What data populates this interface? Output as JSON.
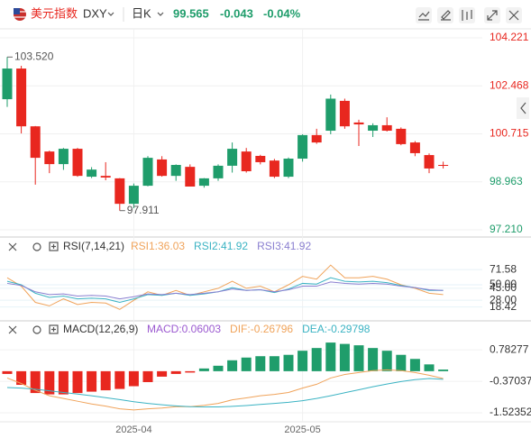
{
  "header": {
    "name": "美元指数",
    "symbol": "DXY",
    "period": "日K",
    "price": "99.565",
    "change": "-0.043",
    "change_pct": "-0.04%",
    "price_color": "#1f9d6b"
  },
  "chart_data": [
    {
      "type": "candlestick",
      "categories": [
        null,
        null,
        null,
        null,
        null,
        null,
        null,
        null,
        null,
        "2025-04",
        null,
        null,
        null,
        null,
        null,
        null,
        null,
        null,
        null,
        null,
        null,
        "2025-05",
        null,
        null,
        null,
        null,
        null,
        null,
        null,
        null,
        null,
        null
      ],
      "open": [
        101.98,
        103.1,
        100.99,
        100.07,
        99.61,
        100.17,
        99.15,
        99.18,
        99.09,
        98.16,
        98.82,
        99.78,
        99.18,
        99.51,
        98.82,
        99.09,
        99.55,
        100.07,
        99.91,
        99.74,
        99.15,
        99.81,
        100.67,
        100.83,
        101.92,
        101.13,
        100.83,
        101.03,
        100.9,
        100.4,
        99.94,
        99.58
      ],
      "high": [
        103.52,
        103.2,
        101.0,
        100.1,
        100.2,
        100.2,
        99.5,
        99.68,
        99.1,
        98.9,
        99.9,
        99.9,
        99.6,
        99.6,
        99.1,
        99.6,
        100.4,
        100.2,
        99.95,
        99.8,
        99.85,
        100.7,
        100.9,
        102.15,
        102.0,
        101.23,
        101.1,
        101.32,
        100.95,
        100.45,
        100.0,
        99.7
      ],
      "low": [
        101.7,
        100.73,
        98.86,
        99.28,
        99.4,
        99.15,
        99.1,
        99.02,
        97.911,
        98.0,
        98.8,
        99.15,
        99.0,
        98.79,
        98.75,
        99.0,
        99.3,
        99.3,
        99.6,
        99.1,
        99.1,
        99.7,
        100.35,
        100.7,
        100.9,
        100.27,
        100.6,
        100.8,
        100.3,
        99.9,
        99.28,
        99.45
      ],
      "close": [
        103.1,
        100.99,
        99.84,
        99.61,
        100.17,
        99.18,
        99.41,
        99.12,
        98.16,
        98.82,
        99.84,
        99.18,
        99.58,
        98.79,
        99.09,
        99.55,
        100.17,
        99.35,
        99.68,
        99.15,
        99.81,
        100.67,
        100.4,
        102.0,
        100.99,
        101.06,
        101.03,
        100.83,
        100.34,
        100.01,
        99.45,
        99.565
      ],
      "up_color": "#1f9d6b",
      "down_color": "#e8271f",
      "ylim": [
        96.98,
        104.55
      ],
      "yticks": [
        104.221,
        102.468,
        100.715,
        98.963,
        97.21
      ],
      "ytick_labels": [
        "104.221",
        "102.468",
        "100.715",
        "98.963",
        "97.210"
      ],
      "ytick_colors": [
        "#e8271f",
        "#e8271f",
        "#e8271f",
        "#1f9d6b",
        "#1f9d6b"
      ],
      "annotations": [
        {
          "label": "103.520",
          "value": 103.52,
          "candle": 0
        },
        {
          "label": "97.911",
          "value": 97.911,
          "candle": 8
        }
      ],
      "grid": true
    },
    {
      "type": "line",
      "title": "RSI(7,14,21)",
      "ylim": [
        0,
        100
      ],
      "yticks": [
        71.58,
        {
          "value": 50,
          "label": "50.00"
        },
        {
          "value": 45,
          "label": "45.00"
        },
        18.42,
        {
          "value": 28,
          "label": "28.00"
        }
      ],
      "series": [
        {
          "name": "RSI1",
          "legend": "RSI1:36.03",
          "color": "#f0a35a",
          "values": [
            60,
            48,
            25,
            20,
            30,
            22,
            25,
            24,
            15,
            28,
            40,
            35,
            42,
            35,
            40,
            45,
            55,
            45,
            48,
            40,
            50,
            62,
            58,
            78,
            60,
            60,
            62,
            58,
            50,
            45,
            38,
            36.03
          ]
        },
        {
          "name": "RSI2",
          "legend": "RSI2:41.92",
          "color": "#3bb3c3",
          "values": [
            55,
            50,
            38,
            32,
            34,
            30,
            31,
            30,
            25,
            30,
            36,
            35,
            38,
            35,
            37,
            40,
            46,
            42,
            43,
            39,
            44,
            52,
            51,
            60,
            55,
            54,
            55,
            53,
            49,
            46,
            42,
            41.92
          ]
        },
        {
          "name": "RSI3",
          "legend": "RSI3:41.92",
          "color": "#8a7fd0",
          "values": [
            52,
            49,
            40,
            36,
            37,
            34,
            35,
            34,
            30,
            33,
            37,
            36,
            38,
            36,
            38,
            40,
            44,
            42,
            43,
            40,
            43,
            48,
            48,
            54,
            52,
            51,
            52,
            51,
            48,
            46,
            43,
            41.92
          ]
        }
      ]
    },
    {
      "type": "macd",
      "title": "MACD(12,26,9)",
      "ylim": [
        -1.92,
        1.78
      ],
      "yticks": [
        0.78277,
        -0.37037,
        -1.52352
      ],
      "histogram": {
        "name": "MACD",
        "legend": "MACD:0.06003",
        "color": "#9b59d0",
        "up_color": "#1f9d6b",
        "down_color": "#e8271f",
        "values": [
          -0.1,
          -0.5,
          -0.8,
          -0.85,
          -0.85,
          -0.8,
          -0.75,
          -0.7,
          -0.65,
          -0.55,
          -0.4,
          -0.2,
          -0.1,
          -0.05,
          0.1,
          0.2,
          0.4,
          0.5,
          0.55,
          0.55,
          0.6,
          0.75,
          0.85,
          1.05,
          1.0,
          0.95,
          0.85,
          0.75,
          0.6,
          0.45,
          0.25,
          0.06003
        ]
      },
      "series": [
        {
          "name": "DIF",
          "legend": "DIF:-0.26796",
          "color": "#f0a35a",
          "values": [
            -0.25,
            -0.45,
            -0.7,
            -0.9,
            -1.0,
            -1.1,
            -1.2,
            -1.28,
            -1.38,
            -1.42,
            -1.38,
            -1.35,
            -1.3,
            -1.3,
            -1.25,
            -1.18,
            -1.05,
            -0.98,
            -0.9,
            -0.85,
            -0.78,
            -0.62,
            -0.48,
            -0.25,
            -0.12,
            -0.05,
            0.02,
            0.05,
            0.02,
            -0.05,
            -0.15,
            -0.26796
          ]
        },
        {
          "name": "DEA",
          "legend": "DEA:-0.29798",
          "color": "#3bb3c3",
          "values": [
            -0.6,
            -0.62,
            -0.66,
            -0.72,
            -0.78,
            -0.84,
            -0.9,
            -0.97,
            -1.04,
            -1.12,
            -1.18,
            -1.23,
            -1.27,
            -1.3,
            -1.31,
            -1.31,
            -1.29,
            -1.26,
            -1.22,
            -1.18,
            -1.14,
            -1.08,
            -1.0,
            -0.9,
            -0.79,
            -0.68,
            -0.57,
            -0.47,
            -0.38,
            -0.31,
            -0.27,
            -0.29798
          ]
        }
      ]
    }
  ]
}
